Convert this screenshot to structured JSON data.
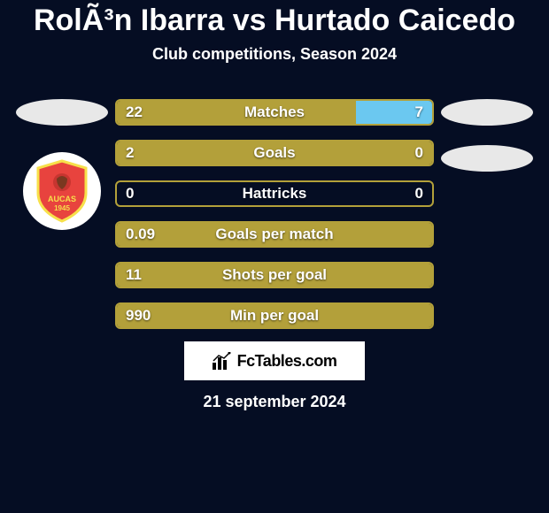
{
  "title": "RolÃ³n Ibarra vs Hurtado Caicedo",
  "subtitle": "Club competitions, Season 2024",
  "bars": [
    {
      "label": "Matches",
      "left_value": "22",
      "right_value": "7",
      "left_pct": 75.9,
      "right_pct": 24.1,
      "left_color": "#b3a03a",
      "right_color": "#6bc8f0"
    },
    {
      "label": "Goals",
      "left_value": "2",
      "right_value": "0",
      "left_pct": 100,
      "right_pct": 0,
      "left_color": "#b3a03a",
      "right_color": "#6bc8f0"
    },
    {
      "label": "Hattricks",
      "left_value": "0",
      "right_value": "0",
      "left_pct": 0,
      "right_pct": 0,
      "left_color": "#b3a03a",
      "right_color": "#6bc8f0"
    },
    {
      "label": "Goals per match",
      "left_value": "0.09",
      "right_value": "",
      "left_pct": 100,
      "right_pct": 0,
      "left_color": "#b3a03a",
      "right_color": "#6bc8f0"
    },
    {
      "label": "Shots per goal",
      "left_value": "11",
      "right_value": "",
      "left_pct": 100,
      "right_pct": 0,
      "left_color": "#b3a03a",
      "right_color": "#6bc8f0"
    },
    {
      "label": "Min per goal",
      "left_value": "990",
      "right_value": "",
      "left_pct": 100,
      "right_pct": 0,
      "left_color": "#b3a03a",
      "right_color": "#6bc8f0"
    }
  ],
  "footer_logo_text": "FcTables.com",
  "date": "21 september 2024",
  "colors": {
    "background": "#050d23",
    "bar_border": "#b3a03a",
    "ellipse": "#e8e8e8",
    "logo_shield": "#e8433e",
    "logo_shield_border": "#f7e04a"
  },
  "logo": {
    "name": "AUCAS",
    "year": "1945"
  }
}
